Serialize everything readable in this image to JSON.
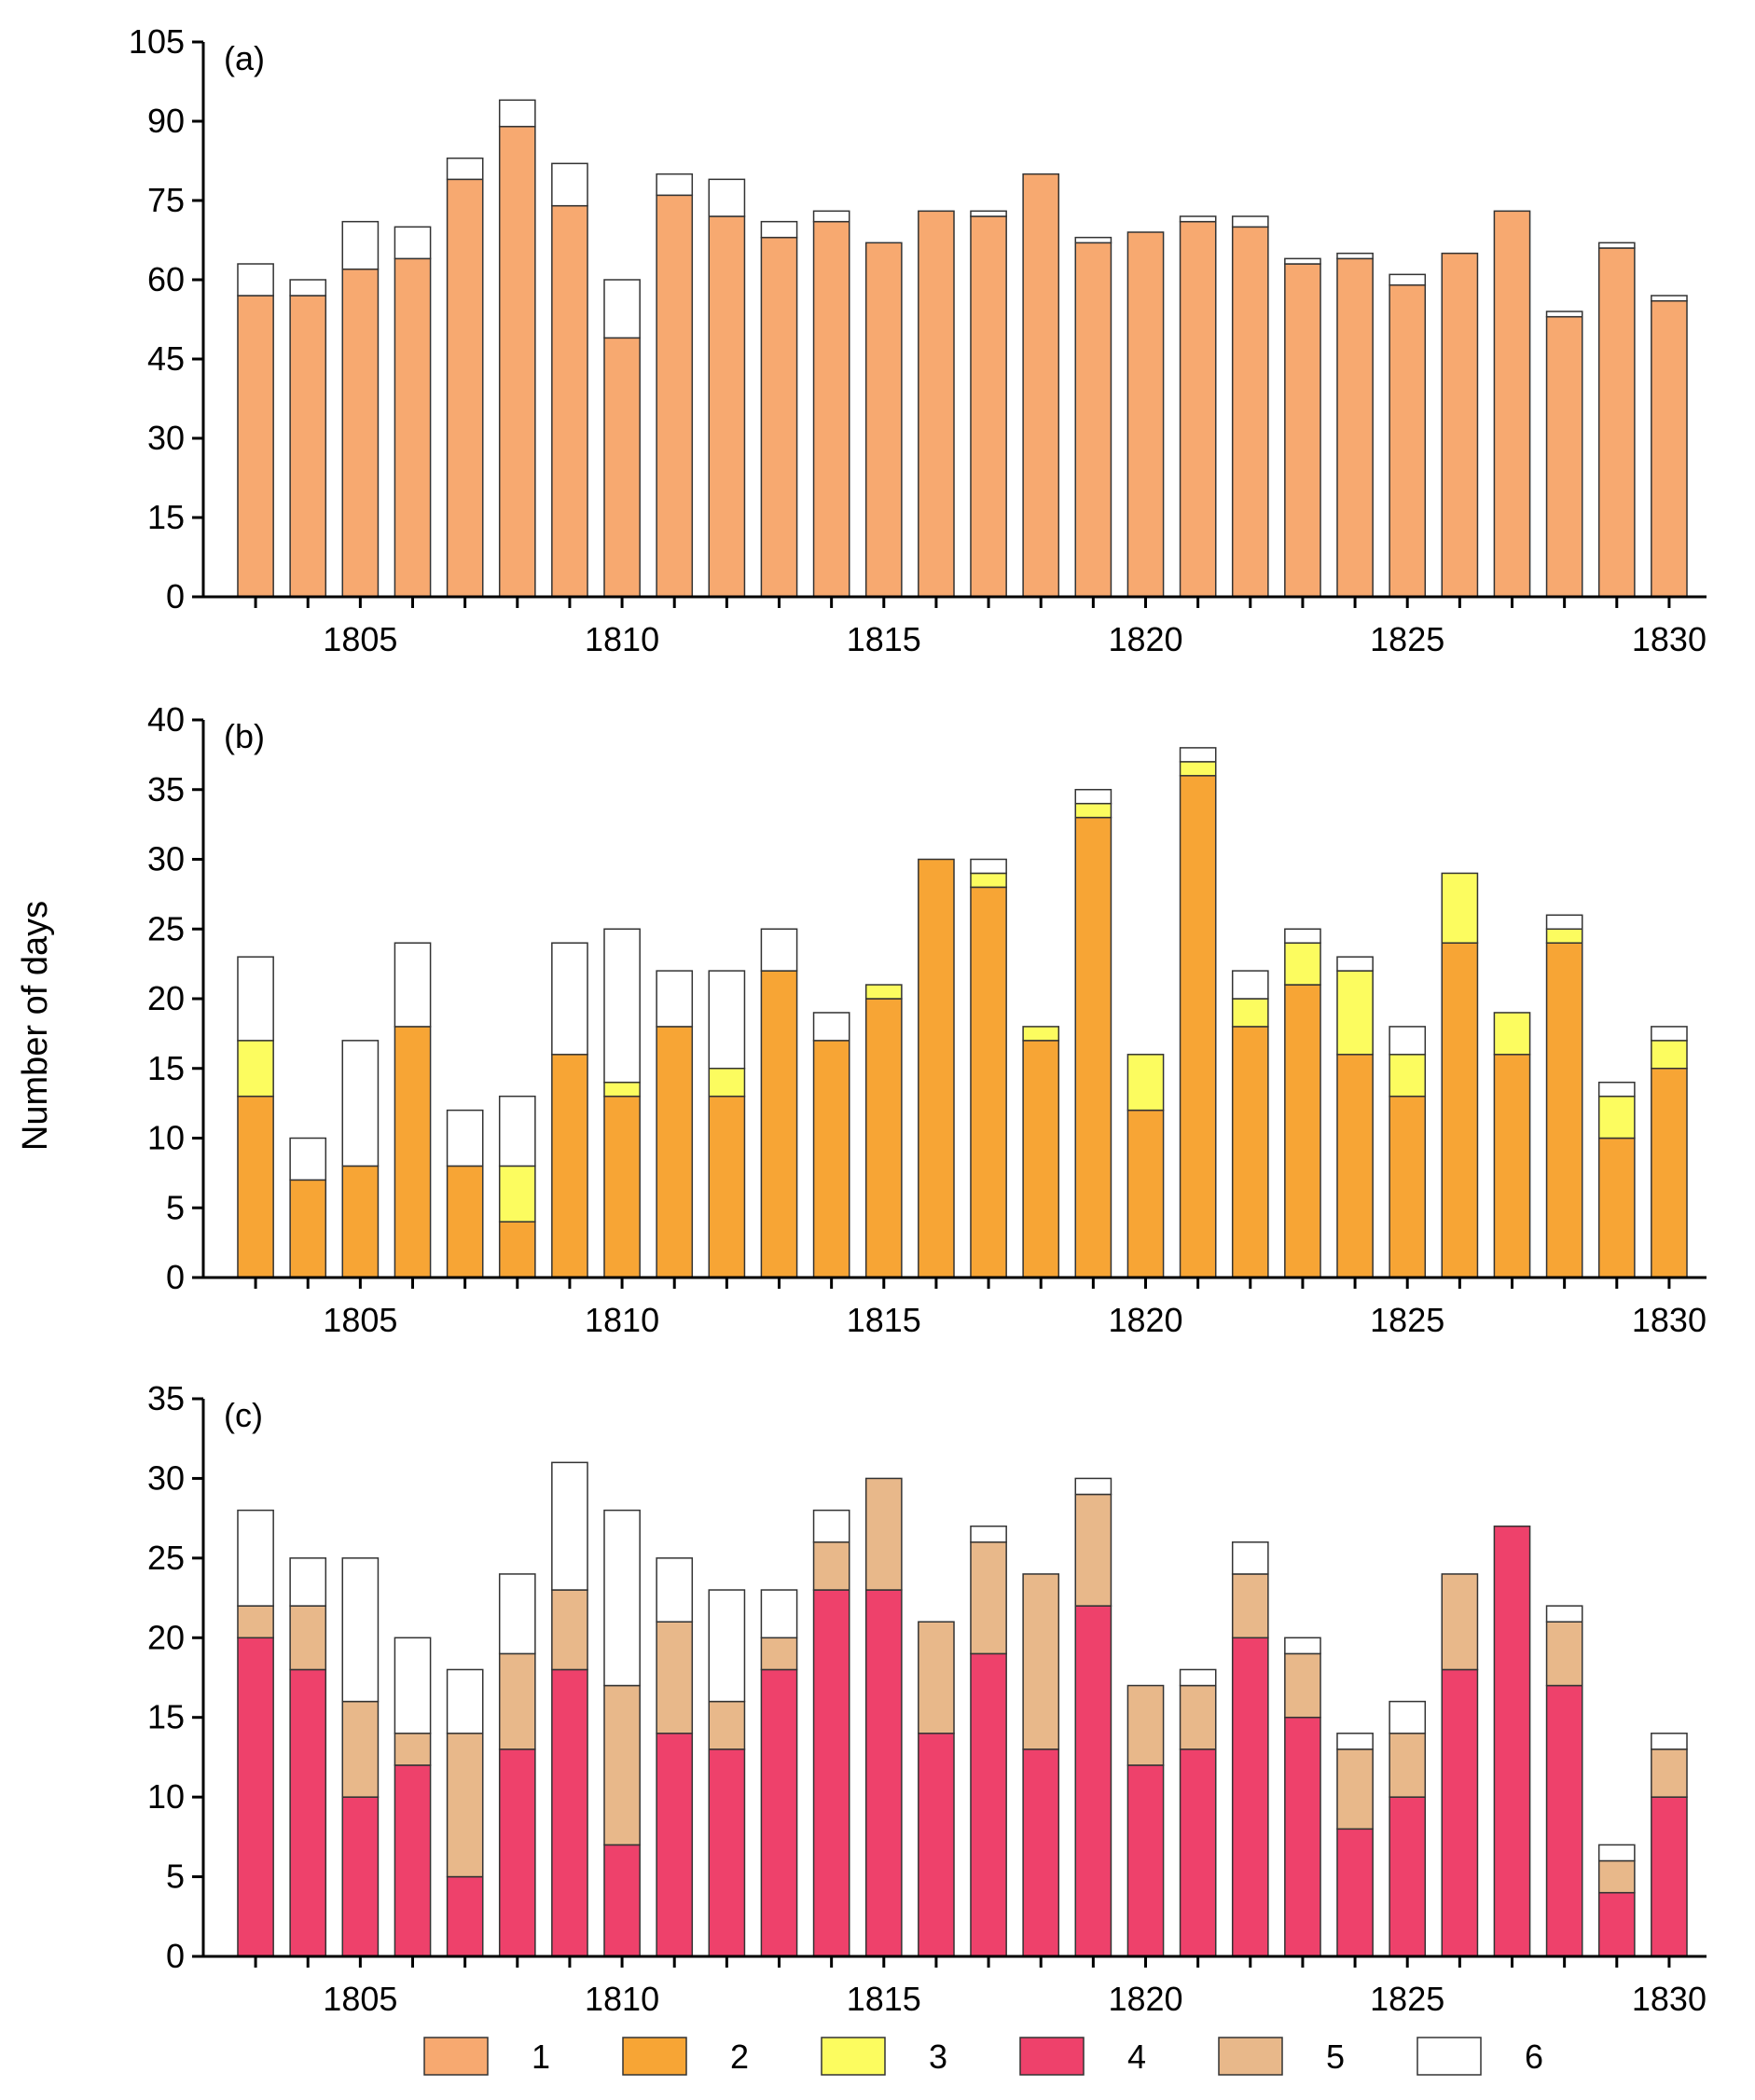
{
  "chart_data": {
    "type": "bar",
    "stacked": true,
    "ylabel": "Number of days",
    "x": [
      1803,
      1804,
      1805,
      1806,
      1807,
      1808,
      1809,
      1810,
      1811,
      1812,
      1813,
      1814,
      1815,
      1816,
      1817,
      1818,
      1819,
      1820,
      1821,
      1822,
      1823,
      1824,
      1825,
      1826,
      1827,
      1828,
      1829,
      1830
    ],
    "x_tick_labels": [
      "1805",
      "1810",
      "1815",
      "1820",
      "1825",
      "1830"
    ],
    "x_tick_values": [
      1805,
      1810,
      1815,
      1820,
      1825,
      1830
    ],
    "legend": {
      "placement": "bottom",
      "entries": [
        {
          "key": "1",
          "label": "1",
          "color": "#F7A970"
        },
        {
          "key": "2",
          "label": "2",
          "color": "#F7A535"
        },
        {
          "key": "3",
          "label": "3",
          "color": "#FCFC5F"
        },
        {
          "key": "4",
          "label": "4",
          "color": "#EE416B"
        },
        {
          "key": "5",
          "label": "5",
          "color": "#E8B88A"
        },
        {
          "key": "6",
          "label": "6",
          "color": "#FFFFFF"
        }
      ]
    },
    "panels": [
      {
        "label": "(a)",
        "ylim": [
          0,
          105
        ],
        "y_ticks": [
          0,
          15,
          30,
          45,
          60,
          75,
          90,
          105
        ],
        "series": [
          {
            "name": "1",
            "values": [
              57,
              57,
              62,
              64,
              79,
              89,
              74,
              49,
              76,
              72,
              68,
              71,
              67,
              73,
              72,
              80,
              67,
              69,
              71,
              70,
              63,
              64,
              59,
              65,
              73,
              53,
              66,
              56
            ]
          },
          {
            "name": "6",
            "values": [
              6,
              3,
              9,
              6,
              4,
              5,
              8,
              11,
              4,
              7,
              3,
              2,
              0,
              0,
              1,
              0,
              1,
              0,
              1,
              2,
              1,
              1,
              2,
              0,
              0,
              1,
              1,
              1
            ]
          }
        ]
      },
      {
        "label": "(b)",
        "ylim": [
          0,
          40
        ],
        "y_ticks": [
          0,
          5,
          10,
          15,
          20,
          25,
          30,
          35,
          40
        ],
        "series": [
          {
            "name": "2",
            "values": [
              13,
              7,
              8,
              18,
              8,
              4,
              16,
              13,
              18,
              13,
              22,
              17,
              20,
              30,
              28,
              17,
              33,
              12,
              36,
              18,
              21,
              16,
              13,
              24,
              16,
              24,
              10,
              15
            ]
          },
          {
            "name": "3",
            "values": [
              4,
              0,
              0,
              0,
              0,
              4,
              0,
              1,
              0,
              2,
              0,
              0,
              1,
              0,
              1,
              1,
              1,
              4,
              1,
              2,
              3,
              6,
              3,
              5,
              3,
              1,
              3,
              2
            ]
          },
          {
            "name": "6",
            "values": [
              6,
              3,
              9,
              6,
              4,
              5,
              8,
              11,
              4,
              7,
              3,
              2,
              0,
              0,
              1,
              0,
              1,
              0,
              1,
              2,
              1,
              1,
              2,
              0,
              0,
              1,
              1,
              1
            ]
          }
        ]
      },
      {
        "label": "(c)",
        "ylim": [
          0,
          35
        ],
        "y_ticks": [
          0,
          5,
          10,
          15,
          20,
          25,
          30,
          35
        ],
        "series": [
          {
            "name": "4",
            "values": [
              20,
              18,
              10,
              12,
              5,
              13,
              18,
              7,
              14,
              13,
              18,
              23,
              23,
              14,
              19,
              13,
              22,
              12,
              13,
              20,
              15,
              8,
              10,
              18,
              27,
              17,
              4,
              10
            ]
          },
          {
            "name": "5",
            "values": [
              2,
              4,
              6,
              2,
              9,
              6,
              5,
              10,
              7,
              3,
              2,
              3,
              7,
              7,
              7,
              11,
              7,
              5,
              4,
              4,
              4,
              5,
              4,
              6,
              0,
              4,
              2,
              3
            ]
          },
          {
            "name": "6",
            "values": [
              6,
              3,
              9,
              6,
              4,
              5,
              8,
              11,
              4,
              7,
              3,
              2,
              0,
              0,
              1,
              0,
              1,
              0,
              1,
              2,
              1,
              1,
              2,
              0,
              0,
              1,
              1,
              1
            ]
          }
        ]
      }
    ]
  }
}
